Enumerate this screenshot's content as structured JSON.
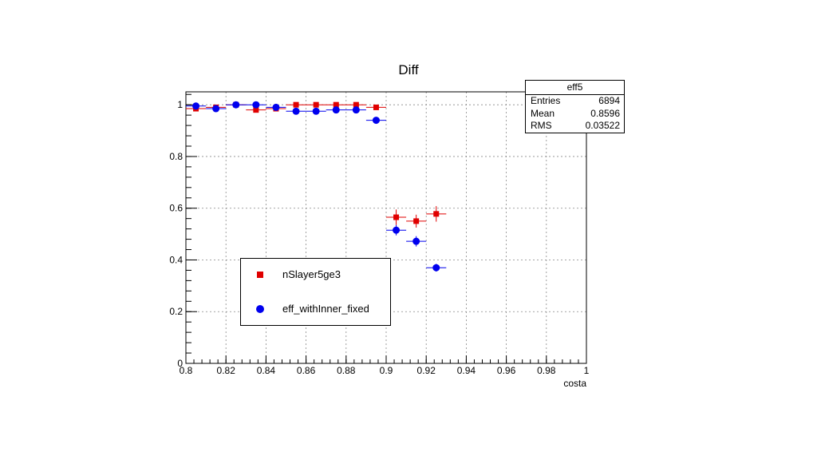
{
  "chart_data": {
    "type": "scatter",
    "title": "Diff",
    "xlabel": "costa",
    "ylabel": "",
    "xlim": [
      0.8,
      1.0
    ],
    "ylim": [
      0,
      1.05
    ],
    "grid": true,
    "legend_placement": "lower-left",
    "x_ticks": [
      "0.8",
      "0.82",
      "0.84",
      "0.86",
      "0.88",
      "0.9",
      "0.92",
      "0.94",
      "0.96",
      "0.98",
      "1"
    ],
    "y_ticks": [
      "0",
      "0.2",
      "0.4",
      "0.6",
      "0.8",
      "1"
    ],
    "series": [
      {
        "name": "nSlayer5ge3",
        "marker": "square",
        "color": "#e00000",
        "x": [
          0.805,
          0.815,
          0.825,
          0.835,
          0.845,
          0.855,
          0.865,
          0.875,
          0.885,
          0.895,
          0.905,
          0.915,
          0.925
        ],
        "y": [
          0.985,
          0.99,
          1.0,
          0.98,
          0.985,
          1.0,
          1.0,
          1.0,
          1.0,
          0.99,
          0.565,
          0.55,
          0.578
        ],
        "yerr": [
          0.005,
          0.005,
          0.004,
          0.006,
          0.005,
          0.004,
          0.004,
          0.004,
          0.004,
          0.006,
          0.03,
          0.025,
          0.03
        ]
      },
      {
        "name": "eff_withInner_fixed",
        "marker": "circle",
        "color": "#0000ee",
        "x": [
          0.805,
          0.815,
          0.825,
          0.835,
          0.845,
          0.855,
          0.865,
          0.875,
          0.885,
          0.895,
          0.905,
          0.915,
          0.925
        ],
        "y": [
          0.995,
          0.985,
          1.0,
          1.0,
          0.99,
          0.975,
          0.975,
          0.98,
          0.98,
          0.94,
          0.515,
          0.472,
          0.37
        ],
        "yerr": [
          0.005,
          0.005,
          0.004,
          0.004,
          0.005,
          0.006,
          0.006,
          0.006,
          0.006,
          0.008,
          0.02,
          0.02,
          0.015
        ]
      }
    ]
  },
  "stats": {
    "title": "eff5",
    "rows": [
      {
        "label": "Entries",
        "value": "6894"
      },
      {
        "label": "Mean",
        "value": "0.8596"
      },
      {
        "label": "RMS",
        "value": "0.03522"
      }
    ]
  },
  "legend": {
    "items": [
      {
        "label": "nSlayer5ge3"
      },
      {
        "label": "eff_withInner_fixed"
      }
    ]
  }
}
